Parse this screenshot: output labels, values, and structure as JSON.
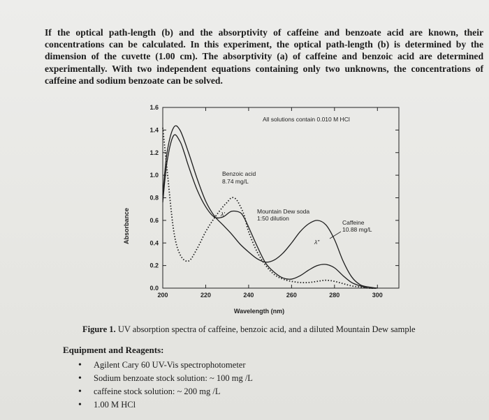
{
  "document": {
    "intro_paragraph": "If the optical path-length (b) and the absorptivity of caffeine and benzoate acid are known, their concentrations can be calculated. In this experiment, the optical path-length (b) is determined by the dimension of the cuvette (1.00 cm). The absorptivity (a) of caffeine and benzoic acid are determined experimentally. With two independent equations containing only two unknowns, the concentrations of caffeine and sodium benzoate can be solved.",
    "figure_caption_label": "Figure 1.",
    "figure_caption_text": " UV absorption spectra of caffeine, benzoic acid, and a diluted Mountain Dew sample",
    "section_heading": "Equipment and Reagents:",
    "bullets": [
      "Agilent Cary 60 UV-Vis spectrophotometer",
      "Sodium benzoate stock solution: ~ 100 mg /L",
      "caffeine stock solution: ~ 200 mg /L",
      "1.00 M HCl"
    ]
  },
  "chart_data": {
    "type": "line",
    "title": "",
    "xlabel": "Wavelength (nm)",
    "ylabel": "Absorbance",
    "xlim": [
      200,
      310
    ],
    "ylim": [
      0.0,
      1.6
    ],
    "x_ticks": [
      "200",
      "220",
      "240",
      "260",
      "280",
      "300"
    ],
    "x_tick_values": [
      200,
      220,
      240,
      260,
      280,
      300
    ],
    "y_ticks": [
      "0.0",
      "0.2",
      "0.4",
      "0.6",
      "0.8",
      "1.0",
      "1.2",
      "1.4",
      "1.6"
    ],
    "y_tick_values": [
      0.0,
      0.2,
      0.4,
      0.6,
      0.8,
      1.0,
      1.2,
      1.4,
      1.6
    ],
    "grid": false,
    "annotations": {
      "top_note": "All solutions contain 0.010 M HCl",
      "benzoic_line1": "Benzoic acid",
      "benzoic_line2": "8.74 mg/L",
      "dew_line1": "Mountain Dew soda",
      "dew_line2": "1:50 dilution",
      "caffeine_line1": "Caffeine",
      "caffeine_line2": "10.88 mg/L",
      "lambda1": "λ'",
      "lambda2": "λ\""
    },
    "series": [
      {
        "name": "Benzoic acid",
        "style": "dotted",
        "x": [
          200,
          202,
          205,
          208,
          212,
          216,
          220,
          224,
          228,
          230,
          232,
          234,
          236,
          238,
          240,
          244,
          248,
          252,
          256,
          260,
          264,
          268,
          272,
          276,
          280,
          284,
          288,
          292,
          296,
          300
        ],
        "y": [
          1.42,
          1.05,
          0.52,
          0.3,
          0.24,
          0.35,
          0.5,
          0.62,
          0.72,
          0.76,
          0.8,
          0.79,
          0.73,
          0.64,
          0.5,
          0.32,
          0.2,
          0.12,
          0.08,
          0.06,
          0.05,
          0.05,
          0.06,
          0.07,
          0.06,
          0.04,
          0.02,
          0.01,
          0.0,
          0.0
        ]
      },
      {
        "name": "Mountain Dew soda",
        "style": "solid",
        "x": [
          200,
          202,
          205,
          208,
          210,
          212,
          216,
          220,
          224,
          228,
          232,
          236,
          238,
          240,
          244,
          248,
          252,
          256,
          260,
          264,
          268,
          272,
          276,
          280,
          284,
          288,
          292,
          296,
          300
        ],
        "y": [
          0.76,
          1.12,
          1.35,
          1.3,
          1.2,
          1.08,
          0.87,
          0.72,
          0.63,
          0.63,
          0.68,
          0.67,
          0.62,
          0.54,
          0.37,
          0.22,
          0.14,
          0.09,
          0.08,
          0.11,
          0.16,
          0.2,
          0.21,
          0.18,
          0.11,
          0.05,
          0.02,
          0.0,
          0.0
        ]
      },
      {
        "name": "Caffeine",
        "style": "solid",
        "x": [
          200,
          202,
          205,
          208,
          212,
          216,
          220,
          224,
          228,
          232,
          236,
          240,
          244,
          248,
          252,
          256,
          260,
          264,
          268,
          272,
          276,
          280,
          284,
          288,
          292,
          296,
          300
        ],
        "y": [
          0.83,
          1.2,
          1.42,
          1.4,
          1.2,
          0.97,
          0.77,
          0.64,
          0.56,
          0.48,
          0.39,
          0.32,
          0.26,
          0.23,
          0.25,
          0.31,
          0.4,
          0.5,
          0.57,
          0.6,
          0.56,
          0.43,
          0.24,
          0.1,
          0.03,
          0.01,
          0.0
        ]
      }
    ]
  }
}
